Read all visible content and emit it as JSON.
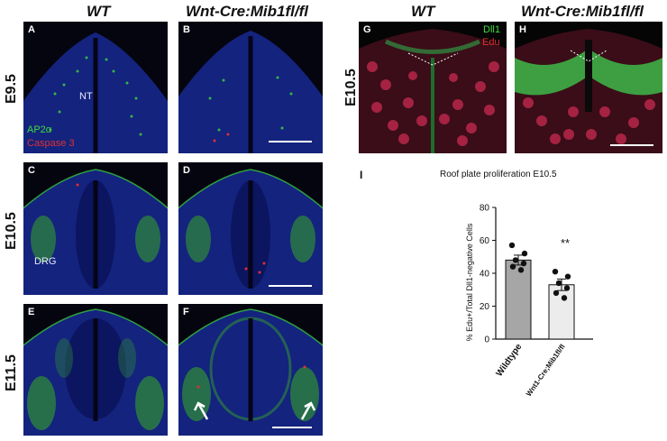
{
  "headers": {
    "wt_left": "WT",
    "mut_left": "Wnt-Cre:Mib1fl/fl",
    "wt_right": "WT",
    "mut_right": "Wnt-Cre:Mib1fl/fl"
  },
  "rows": {
    "e95": "E9.5",
    "e105": "E10.5",
    "e115": "E11.5",
    "e105_right": "E10.5"
  },
  "panels": {
    "A": "A",
    "B": "B",
    "C": "C",
    "D": "D",
    "E": "E",
    "F": "F",
    "G": "G",
    "H": "H"
  },
  "annotations": {
    "nt": "NT",
    "drg": "DRG",
    "ap2a": "AP2α",
    "caspase": "Caspase 3",
    "dll1": "Dll1",
    "edu": "Edu"
  },
  "colors": {
    "green": "#3ddc3d",
    "red": "#e03030",
    "blue": "#1a2a9a",
    "bar_wt": "#a6a6a6",
    "bar_mut": "#ececec"
  },
  "panel_I": {
    "label": "I",
    "title": "Roof plate proliferation E10.5"
  },
  "chart_data": {
    "type": "bar",
    "title": "Roof plate proliferation E10.5",
    "ylabel": "% Edu+/Total Dll1-negative Cells",
    "categories": [
      "Wildtype",
      "Wnt1-Cre;Mib1fl/fl"
    ],
    "values": [
      48,
      33
    ],
    "errors": [
      3,
      3.5
    ],
    "ylim": [
      0,
      80
    ],
    "yticks": [
      "0",
      "20",
      "40",
      "60",
      "80"
    ],
    "points": [
      [
        57,
        52,
        48,
        46,
        44,
        42
      ],
      [
        41,
        38,
        34,
        31,
        28,
        25
      ]
    ],
    "significance": "**"
  }
}
